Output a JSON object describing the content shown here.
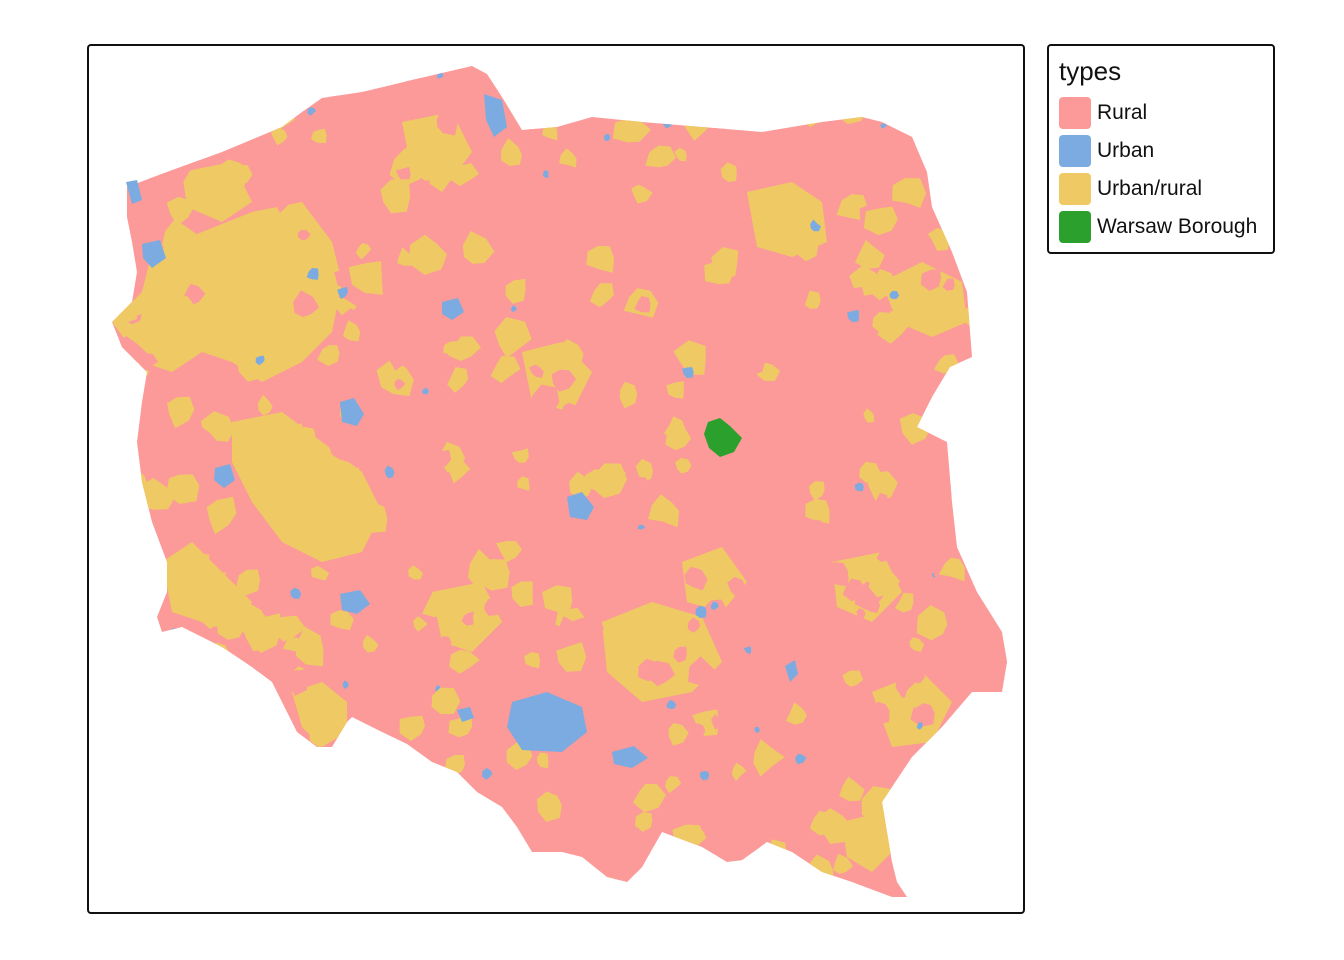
{
  "map": {
    "name": "",
    "region": "Poland"
  },
  "legend": {
    "title": "types",
    "items": [
      {
        "label": "Rural",
        "color": "#FB9A99"
      },
      {
        "label": "Urban",
        "color": "#7BABE0"
      },
      {
        "label": "Urban/rural",
        "color": "#EFCA64"
      },
      {
        "label": "Warsaw Borough",
        "color": "#2CA02C"
      }
    ]
  },
  "colors": {
    "frame_border": "#111111",
    "background": "#FFFFFF"
  }
}
